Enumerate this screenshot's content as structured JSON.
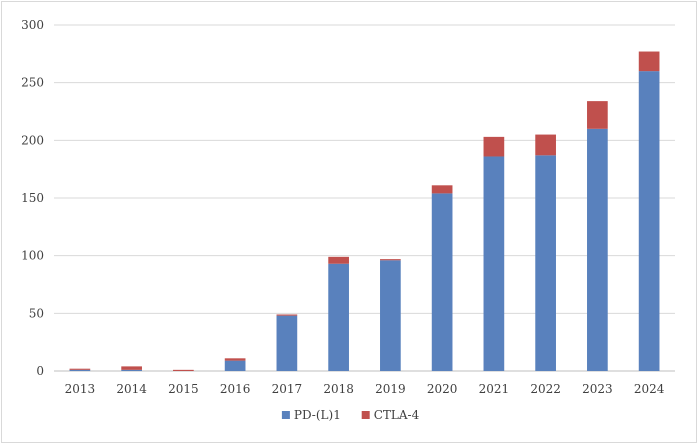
{
  "chart_data": {
    "type": "bar",
    "stacked": true,
    "title": "",
    "xlabel": "",
    "ylabel": "",
    "ylim": [
      0,
      300
    ],
    "yticks": [
      0,
      50,
      100,
      150,
      200,
      250,
      300
    ],
    "grid": true,
    "legend_position": "bottom",
    "categories": [
      "2013",
      "2014",
      "2015",
      "2016",
      "2017",
      "2018",
      "2019",
      "2020",
      "2021",
      "2022",
      "2023",
      "2024"
    ],
    "series": [
      {
        "name": "PD-(L)1",
        "color": "#5981bd",
        "values": [
          1,
          1,
          0,
          9,
          48,
          93,
          96,
          154,
          186,
          187,
          210,
          260
        ]
      },
      {
        "name": "CTLA-4",
        "color": "#c0504d",
        "values": [
          1,
          3,
          1,
          2,
          1,
          6,
          1,
          7,
          17,
          18,
          24,
          17
        ]
      }
    ]
  }
}
